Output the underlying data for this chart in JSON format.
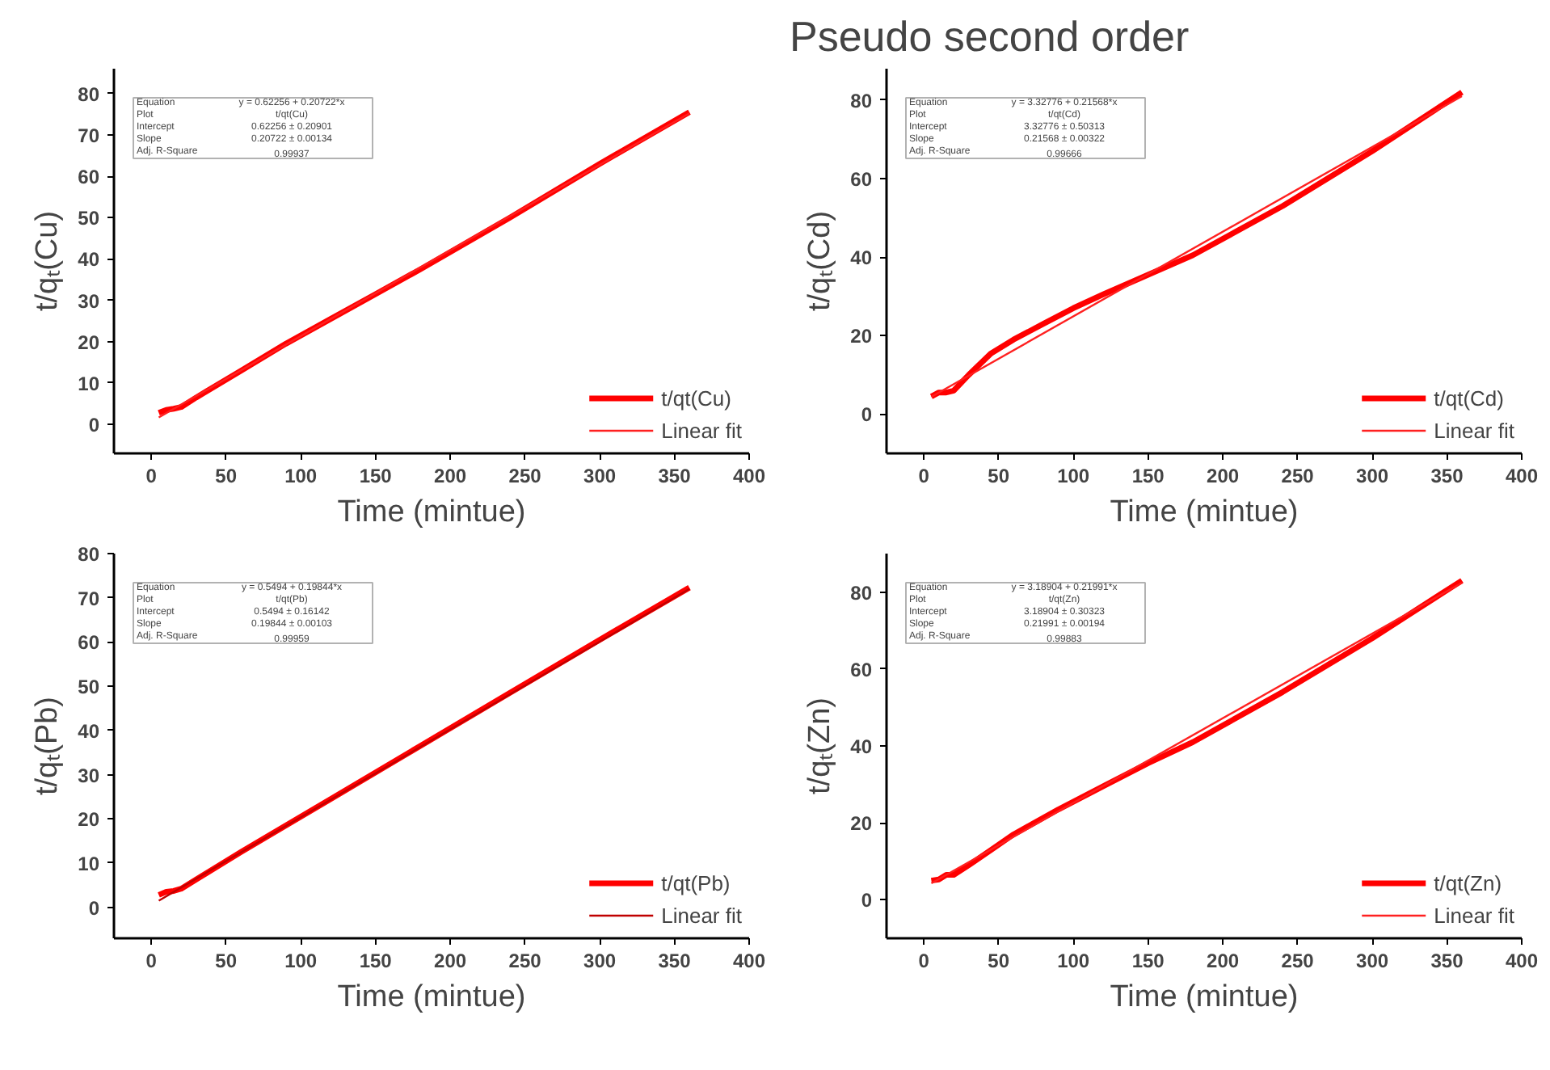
{
  "chart_data": [
    {
      "type": "line",
      "xlabel": "Time (mintue)",
      "ylabel": "t/qₜ(Cu)",
      "xlim": [
        -25,
        400
      ],
      "xticks": [
        0,
        50,
        100,
        150,
        200,
        250,
        300,
        350,
        400
      ],
      "ylim": [
        -7,
        86
      ],
      "yticks": [
        0,
        10,
        20,
        30,
        40,
        50,
        60,
        70,
        80
      ],
      "legend": "bottom right",
      "grid": false,
      "marker": "none",
      "line_style": "solid",
      "annotations": [
        "Equation",
        "y = 0.62256 + 0.20722*x",
        "Plot",
        "t/qt(Cu)",
        "Intercept",
        "0.62256 ± 0.20901",
        "Slope",
        "0.20722 ± 0.00134",
        "Adj. R-Square",
        "0.99937"
      ],
      "series": [
        {
          "name": "t/qt(Cu)",
          "color": "#ff0000",
          "x": [
            5,
            10,
            15,
            20,
            30,
            60,
            90,
            120,
            150,
            180,
            240,
            300,
            360
          ],
          "values": [
            2.8,
            3.5,
            3.8,
            4.2,
            6.5,
            13,
            19.5,
            25.5,
            31.5,
            37.5,
            50,
            63,
            75.5
          ]
        },
        {
          "name": "Linear fit",
          "color": "#ff2020",
          "x": [
            5,
            360
          ],
          "values": [
            1.7,
            75.2
          ]
        }
      ]
    },
    {
      "type": "line",
      "title": "Pseudo second order",
      "xlabel": "Time (mintue)",
      "ylabel": "t/qₜ(Cd)",
      "xlim": [
        -25,
        400
      ],
      "xticks": [
        0,
        50,
        100,
        150,
        200,
        250,
        300,
        350,
        400
      ],
      "ylim": [
        -10,
        88
      ],
      "yticks": [
        0,
        20,
        40,
        60,
        80
      ],
      "legend": "bottom right",
      "grid": false,
      "marker": "none",
      "line_style": "solid",
      "annotations": [
        "Equation",
        "y = 3.32776 + 0.21568*x",
        "Plot",
        "t/qt(Cd)",
        "Intercept",
        "3.32776 ± 0.50313",
        "Slope",
        "0.21568 ± 0.00322",
        "Adj. R-Square",
        "0.99666"
      ],
      "series": [
        {
          "name": "t/qt(Cd)",
          "color": "#ff0000",
          "x": [
            5,
            10,
            15,
            20,
            30,
            45,
            60,
            80,
            100,
            120,
            150,
            180,
            240,
            300,
            360
          ],
          "values": [
            4.5,
            5.5,
            5.5,
            6,
            10,
            15.5,
            19,
            23,
            27,
            30.5,
            35.5,
            40.5,
            53,
            67,
            82
          ]
        },
        {
          "name": "Linear fit",
          "color": "#ff2020",
          "x": [
            5,
            360
          ],
          "values": [
            4.4,
            81
          ]
        }
      ]
    },
    {
      "type": "line",
      "xlabel": "Time (mintue)",
      "ylabel": "t/qₜ(Pb)",
      "xlim": [
        -25,
        400
      ],
      "xticks": [
        0,
        50,
        100,
        150,
        200,
        250,
        300,
        350,
        400
      ],
      "ylim": [
        -7,
        80
      ],
      "yticks": [
        0,
        10,
        20,
        30,
        40,
        50,
        60,
        70,
        80
      ],
      "legend": "bottom right",
      "grid": false,
      "marker": "none",
      "line_style": "solid",
      "annotations": [
        "Equation",
        "y = 0.5494 + 0.19844*x",
        "Plot",
        "t/qt(Pb)",
        "Intercept",
        "0.5494 ± 0.16142",
        "Slope",
        "0.19844 ± 0.00103",
        "Adj. R-Square",
        "0.99959"
      ],
      "series": [
        {
          "name": "t/qt(Pb)",
          "color": "#ff0000",
          "x": [
            5,
            10,
            15,
            20,
            30,
            60,
            120,
            180,
            240,
            300,
            360
          ],
          "values": [
            2.8,
            3.5,
            3.7,
            4.2,
            6.3,
            12.5,
            24.5,
            36.5,
            48.5,
            60.5,
            72.3
          ]
        },
        {
          "name": "Linear fit",
          "color": "#c00000",
          "x": [
            5,
            360
          ],
          "values": [
            1.5,
            72
          ]
        }
      ]
    },
    {
      "type": "line",
      "xlabel": "Time (mintue)",
      "ylabel": "t/qₜ(Zn)",
      "xlim": [
        -25,
        400
      ],
      "xticks": [
        0,
        50,
        100,
        150,
        200,
        250,
        300,
        350,
        400
      ],
      "ylim": [
        -10,
        90
      ],
      "yticks": [
        0,
        20,
        40,
        60,
        80
      ],
      "legend": "bottom right",
      "grid": false,
      "marker": "none",
      "line_style": "solid",
      "annotations": [
        "Equation",
        "y = 3.18904 + 0.21991*x",
        "Plot",
        "t/qt(Zn)",
        "Intercept",
        "3.18904 ± 0.30323",
        "Slope",
        "0.21991 ± 0.00194",
        "Adj. R-Square",
        "0.99883"
      ],
      "series": [
        {
          "name": "t/qt(Zn)",
          "color": "#ff0000",
          "x": [
            5,
            10,
            15,
            20,
            30,
            45,
            60,
            90,
            120,
            150,
            180,
            240,
            300,
            360
          ],
          "values": [
            5,
            5.3,
            6.5,
            6.5,
            9,
            13,
            17,
            23.5,
            29.5,
            35.5,
            41,
            54,
            68,
            83
          ]
        },
        {
          "name": "Linear fit",
          "color": "#ff2020",
          "x": [
            5,
            360
          ],
          "values": [
            4.3,
            82.4
          ]
        }
      ]
    }
  ]
}
